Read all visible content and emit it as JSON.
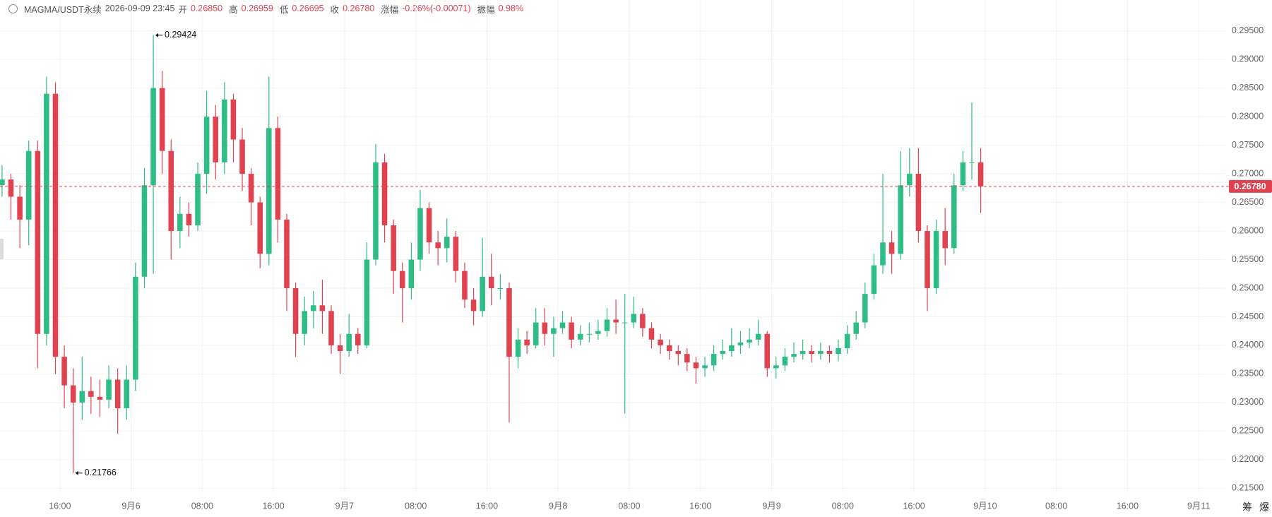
{
  "header": {
    "symbol": "MAGMA/USDT永续",
    "time": "2026-09-09 23:45",
    "open_label": "开",
    "open": "0.26850",
    "high_label": "高",
    "high": "0.26959",
    "low_label": "低",
    "low": "0.26695",
    "close_label": "收",
    "close": "0.26780",
    "change_label": "涨幅",
    "change": "-0.26%(-0.00071)",
    "amplitude_label": "振幅",
    "amplitude": "0.98%"
  },
  "side_labels": [
    "筹",
    "爆"
  ],
  "chart_data": {
    "type": "candlestick",
    "categories": [
      null,
      null,
      null,
      null,
      null,
      null,
      null,
      "16:00",
      null,
      null,
      null,
      null,
      null,
      null,
      null,
      "9月6",
      null,
      null,
      null,
      null,
      null,
      null,
      null,
      "08:00",
      null,
      null,
      null,
      null,
      null,
      null,
      null,
      "16:00",
      null,
      null,
      null,
      null,
      null,
      null,
      null,
      "9月7",
      null,
      null,
      null,
      null,
      null,
      null,
      null,
      "08:00",
      null,
      null,
      null,
      null,
      null,
      null,
      null,
      "16:00",
      null,
      null,
      null,
      null,
      null,
      null,
      null,
      "9月8",
      null,
      null,
      null,
      null,
      null,
      null,
      null,
      "08:00",
      null,
      null,
      null,
      null,
      null,
      null,
      null,
      "16:00",
      null,
      null,
      null,
      null,
      null,
      null,
      null,
      "9月9",
      null,
      null,
      null,
      null,
      null,
      null,
      null,
      "08:00",
      null,
      null,
      null,
      null,
      null,
      null,
      null,
      "16:00",
      null,
      null,
      null,
      null,
      null,
      null,
      null,
      "9月10",
      null,
      null,
      null,
      null,
      null,
      null,
      null,
      "08:00",
      null,
      null,
      null,
      null,
      null,
      null,
      null,
      "16:00",
      null,
      null,
      null,
      null,
      null,
      null,
      null,
      "9月11",
      null,
      null
    ],
    "open": [
      0.268,
      0.269,
      0.266,
      0.262,
      0.274,
      0.242,
      0.284,
      0.238,
      0.233,
      0.23,
      0.232,
      0.231,
      0.2305,
      0.234,
      0.229,
      0.234,
      0.252,
      0.268,
      0.285,
      0.274,
      0.26,
      0.263,
      0.261,
      0.27,
      0.28,
      0.272,
      0.283,
      0.276,
      0.27,
      0.265,
      0.256,
      0.278,
      0.262,
      0.25,
      0.242,
      0.246,
      0.247,
      0.246,
      0.24,
      0.239,
      0.242,
      0.24,
      0.255,
      0.272,
      0.261,
      0.253,
      0.25,
      0.255,
      0.264,
      0.258,
      0.257,
      0.259,
      0.253,
      0.248,
      0.246,
      0.252,
      0.25,
      0.25,
      0.238,
      0.241,
      0.24,
      0.244,
      0.242,
      0.243,
      0.244,
      0.241,
      0.242,
      0.242,
      0.2425,
      0.2445,
      0.244,
      0.244,
      0.2455,
      0.243,
      0.241,
      0.24,
      0.239,
      0.2385,
      0.237,
      0.236,
      0.2365,
      0.2385,
      0.239,
      0.24,
      0.2405,
      0.241,
      0.242,
      0.236,
      0.2365,
      0.238,
      0.2385,
      0.239,
      0.2385,
      0.239,
      0.2385,
      0.2395,
      0.242,
      0.244,
      0.249,
      0.254,
      0.258,
      0.256,
      0.268,
      0.27,
      0.26,
      0.25,
      0.26,
      0.257,
      0.268,
      0.272,
      0.272,
      null,
      null,
      null,
      null,
      null,
      null,
      null,
      null,
      null,
      null,
      null,
      null,
      null,
      null,
      null,
      null,
      null,
      null,
      null,
      null,
      null,
      null,
      null,
      null,
      null,
      null,
      null
    ],
    "high": [
      0.2715,
      0.27,
      0.268,
      0.2758,
      0.2758,
      0.287,
      0.286,
      0.24,
      0.236,
      0.238,
      0.2345,
      0.234,
      0.2365,
      0.236,
      0.2365,
      0.2545,
      0.271,
      0.29424,
      0.288,
      0.276,
      0.266,
      0.265,
      0.272,
      0.2845,
      0.282,
      0.286,
      0.284,
      0.278,
      0.271,
      0.266,
      0.287,
      0.28,
      0.263,
      0.251,
      0.2485,
      0.2495,
      0.2515,
      0.247,
      0.242,
      0.2455,
      0.243,
      0.258,
      0.2752,
      0.2735,
      0.262,
      0.2545,
      0.258,
      0.2672,
      0.265,
      0.26,
      0.2622,
      0.26,
      0.2545,
      0.25,
      0.2588,
      0.256,
      0.2525,
      0.251,
      0.243,
      0.2425,
      0.2465,
      0.2465,
      0.245,
      0.246,
      0.245,
      0.2435,
      0.244,
      0.2445,
      0.2465,
      0.248,
      0.249,
      0.2485,
      0.2465,
      0.244,
      0.242,
      0.241,
      0.24,
      0.2395,
      0.238,
      0.238,
      0.24,
      0.241,
      0.243,
      0.2425,
      0.243,
      0.2445,
      0.2425,
      0.238,
      0.2395,
      0.2405,
      0.241,
      0.24,
      0.2405,
      0.24,
      0.241,
      0.2435,
      0.246,
      0.251,
      0.256,
      0.27,
      0.26,
      0.274,
      0.2745,
      0.2745,
      0.261,
      0.262,
      0.264,
      0.27,
      0.274,
      0.2825,
      0.2745,
      null,
      null,
      null,
      null,
      null,
      null,
      null,
      null,
      null,
      null,
      null,
      null,
      null,
      null,
      null,
      null,
      null,
      null,
      null,
      null,
      null,
      null,
      null,
      null,
      null,
      null,
      null
    ],
    "low": [
      0.266,
      0.262,
      0.257,
      0.2575,
      0.236,
      0.24,
      0.235,
      0.229,
      0.21766,
      0.227,
      0.228,
      0.2275,
      0.229,
      0.2245,
      0.227,
      0.232,
      0.25,
      0.2525,
      0.27,
      0.255,
      0.257,
      0.259,
      0.26,
      0.2665,
      0.269,
      0.27,
      0.272,
      0.267,
      0.261,
      0.2535,
      0.254,
      0.258,
      0.246,
      0.238,
      0.24,
      0.243,
      0.242,
      0.2385,
      0.235,
      0.238,
      0.2385,
      0.2395,
      0.254,
      0.258,
      0.249,
      0.244,
      0.248,
      0.253,
      0.256,
      0.254,
      0.2545,
      0.251,
      0.2465,
      0.2435,
      0.245,
      0.247,
      0.248,
      0.2265,
      0.236,
      0.2385,
      0.2395,
      0.24,
      0.238,
      0.242,
      0.2395,
      0.24,
      0.2405,
      0.241,
      0.2415,
      0.242,
      0.2281,
      0.243,
      0.2415,
      0.2395,
      0.2385,
      0.2375,
      0.2365,
      0.2355,
      0.2333,
      0.2345,
      0.2355,
      0.2375,
      0.238,
      0.2385,
      0.2395,
      0.24,
      0.2345,
      0.2342,
      0.2355,
      0.237,
      0.2375,
      0.237,
      0.2375,
      0.237,
      0.2372,
      0.2385,
      0.241,
      0.243,
      0.248,
      0.2525,
      0.2525,
      0.255,
      0.266,
      0.258,
      0.246,
      0.249,
      0.254,
      0.256,
      0.267,
      0.269,
      0.2632,
      null,
      null,
      null,
      null,
      null,
      null,
      null,
      null,
      null,
      null,
      null,
      null,
      null,
      null,
      null,
      null,
      null,
      null,
      null,
      null,
      null,
      null,
      null,
      null,
      null,
      null,
      null
    ],
    "close": [
      0.269,
      0.266,
      0.262,
      0.274,
      0.242,
      0.284,
      0.238,
      0.233,
      0.23,
      0.232,
      0.231,
      0.2305,
      0.234,
      0.229,
      0.234,
      0.252,
      0.268,
      0.285,
      0.274,
      0.26,
      0.263,
      0.261,
      0.27,
      0.28,
      0.272,
      0.283,
      0.276,
      0.27,
      0.265,
      0.256,
      0.278,
      0.262,
      0.25,
      0.242,
      0.246,
      0.247,
      0.246,
      0.24,
      0.239,
      0.242,
      0.24,
      0.255,
      0.272,
      0.261,
      0.253,
      0.25,
      0.255,
      0.264,
      0.258,
      0.257,
      0.259,
      0.253,
      0.248,
      0.246,
      0.252,
      0.25,
      0.25,
      0.238,
      0.241,
      0.24,
      0.244,
      0.242,
      0.243,
      0.244,
      0.241,
      0.242,
      0.242,
      0.2425,
      0.2445,
      0.244,
      0.244,
      0.2455,
      0.243,
      0.241,
      0.24,
      0.239,
      0.2385,
      0.237,
      0.236,
      0.2365,
      0.2385,
      0.239,
      0.24,
      0.2405,
      0.241,
      0.242,
      0.236,
      0.2365,
      0.238,
      0.2385,
      0.239,
      0.2385,
      0.239,
      0.2385,
      0.2395,
      0.242,
      0.244,
      0.249,
      0.254,
      0.258,
      0.256,
      0.268,
      0.27,
      0.26,
      0.25,
      0.26,
      0.257,
      0.268,
      0.272,
      0.272,
      0.2678,
      null,
      null,
      null,
      null,
      null,
      null,
      null,
      null,
      null,
      null,
      null,
      null,
      null,
      null,
      null,
      null,
      null,
      null,
      null,
      null,
      null,
      null,
      null,
      null,
      null,
      null,
      null
    ],
    "up_color": "#2ebd85",
    "down_color": "#e0424f",
    "ylim": [
      0.2143,
      0.3004
    ],
    "yticks": [
      {
        "value": 0.215,
        "label": "0.21500"
      },
      {
        "value": 0.22,
        "label": "0.22000"
      },
      {
        "value": 0.225,
        "label": "0.22500"
      },
      {
        "value": 0.23,
        "label": "0.23000"
      },
      {
        "value": 0.235,
        "label": "0.23500"
      },
      {
        "value": 0.24,
        "label": "0.24000"
      },
      {
        "value": 0.245,
        "label": "0.24500"
      },
      {
        "value": 0.25,
        "label": "0.25000"
      },
      {
        "value": 0.255,
        "label": "0.25500"
      },
      {
        "value": 0.26,
        "label": "0.26000"
      },
      {
        "value": 0.265,
        "label": "0.26500"
      },
      {
        "value": 0.27,
        "label": "0.27000"
      },
      {
        "value": 0.275,
        "label": "0.27500"
      },
      {
        "value": 0.28,
        "label": "0.28000"
      },
      {
        "value": 0.285,
        "label": "0.28500"
      },
      {
        "value": 0.29,
        "label": "0.29000"
      },
      {
        "value": 0.295,
        "label": "0.29500"
      }
    ],
    "current_price": {
      "value": 0.2678,
      "label": "0.26780",
      "color": "#e0424f"
    },
    "grid": true
  }
}
